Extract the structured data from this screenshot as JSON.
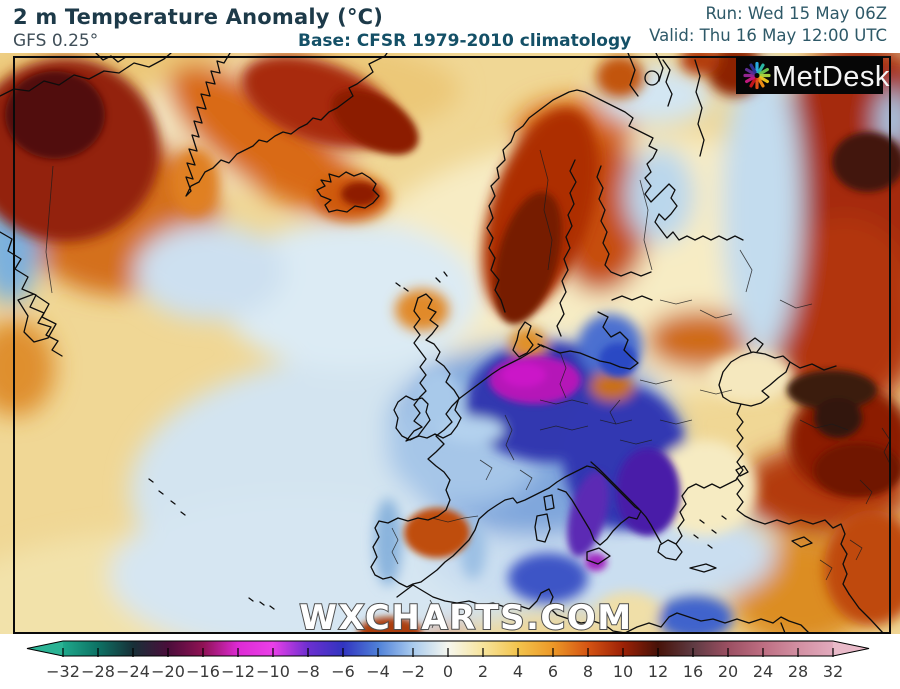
{
  "header": {
    "title": "2 m Temperature Anomaly (°C)",
    "model": "GFS 0.25°",
    "base": "Base: CFSR 1979-2010 climatology",
    "run": "Run: Wed 15 May 06Z",
    "valid": "Valid: Thu 16 May 12:00 UTC"
  },
  "branding": {
    "logo_text": "MetDesk",
    "logo_icon": "pinwheel-icon",
    "watermark": "WXCHARTS.COM"
  },
  "colorbar": {
    "tip_left": "#2bb394",
    "tip_right": "#e9bac9",
    "ticks": [
      {
        "label": "−32",
        "color": "#1ea88b"
      },
      {
        "label": "−28",
        "color": "#0d7264"
      },
      {
        "label": "−24",
        "color": "#173038"
      },
      {
        "label": "−20",
        "color": "#4a0d3a"
      },
      {
        "label": "−16",
        "color": "#8f1254"
      },
      {
        "label": "−12",
        "color": "#dd2ad4"
      },
      {
        "label": "−10",
        "color": "#ea3fe8"
      },
      {
        "label": "−8",
        "color": "#6c2fd0"
      },
      {
        "label": "−6",
        "color": "#3134c0"
      },
      {
        "label": "−4",
        "color": "#4f80d8"
      },
      {
        "label": "−2",
        "color": "#a9cbee"
      },
      {
        "label": "0",
        "color": "#f6f7ef"
      },
      {
        "label": "2",
        "color": "#f7e49c"
      },
      {
        "label": "4",
        "color": "#f3c44d"
      },
      {
        "label": "6",
        "color": "#ec9827"
      },
      {
        "label": "8",
        "color": "#d55413"
      },
      {
        "label": "10",
        "color": "#9d2106"
      },
      {
        "label": "12",
        "color": "#471208"
      },
      {
        "label": "16",
        "color": "#5e3a42"
      },
      {
        "label": "20",
        "color": "#9b4f62"
      },
      {
        "label": "24",
        "color": "#bd6e82"
      },
      {
        "label": "28",
        "color": "#d28fa2"
      },
      {
        "label": "32",
        "color": "#e2aabd"
      }
    ]
  }
}
